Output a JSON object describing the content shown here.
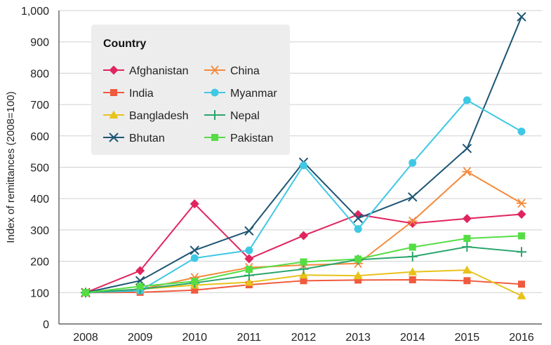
{
  "chart_data": {
    "type": "line",
    "title": "",
    "xlabel": "",
    "ylabel": "Index of remittances (2008=100)",
    "x": [
      2008,
      2009,
      2010,
      2011,
      2012,
      2013,
      2014,
      2015,
      2016
    ],
    "x_tick_labels": [
      "2008",
      "2009",
      "2010",
      "2011",
      "2012",
      "2013",
      "2014",
      "2015",
      "2016"
    ],
    "ylim": [
      0,
      1000
    ],
    "y_ticks": [
      0,
      100,
      200,
      300,
      400,
      500,
      600,
      700,
      800,
      900,
      1000
    ],
    "y_tick_labels": [
      "0",
      "100",
      "200",
      "300",
      "400",
      "500",
      "600",
      "700",
      "800",
      "900",
      "1,000"
    ],
    "grid": "horizontal",
    "legend": {
      "title": "Country",
      "placement": "top-left"
    },
    "series": [
      {
        "name": "Afghanistan",
        "color": "#e0245e",
        "marker": "diamond",
        "values": [
          100,
          170,
          383,
          208,
          282,
          349,
          321,
          336,
          350
        ]
      },
      {
        "name": "India",
        "color": "#f05a3e",
        "marker": "square",
        "values": [
          100,
          101,
          108,
          125,
          138,
          140,
          141,
          138,
          127
        ]
      },
      {
        "name": "Bangladesh",
        "color": "#e8c21a",
        "marker": "triangle",
        "values": [
          100,
          111,
          124,
          133,
          156,
          154,
          166,
          172,
          90
        ]
      },
      {
        "name": "Bhutan",
        "color": "#1d5573",
        "marker": "x",
        "values": [
          100,
          138,
          235,
          297,
          516,
          337,
          405,
          560,
          980
        ]
      },
      {
        "name": "China",
        "color": "#f58a3c",
        "marker": "asterisk",
        "values": [
          100,
          110,
          148,
          180,
          188,
          193,
          328,
          486,
          385
        ]
      },
      {
        "name": "Myanmar",
        "color": "#3fc8e4",
        "marker": "circle",
        "values": [
          100,
          106,
          210,
          235,
          506,
          303,
          514,
          714,
          614
        ]
      },
      {
        "name": "Nepal",
        "color": "#2aa56b",
        "marker": "plus",
        "values": [
          100,
          111,
          131,
          155,
          175,
          205,
          215,
          246,
          230
        ]
      },
      {
        "name": "Pakistan",
        "color": "#55dd44",
        "marker": "square",
        "values": [
          100,
          120,
          136,
          174,
          198,
          207,
          245,
          273,
          281
        ]
      }
    ]
  }
}
